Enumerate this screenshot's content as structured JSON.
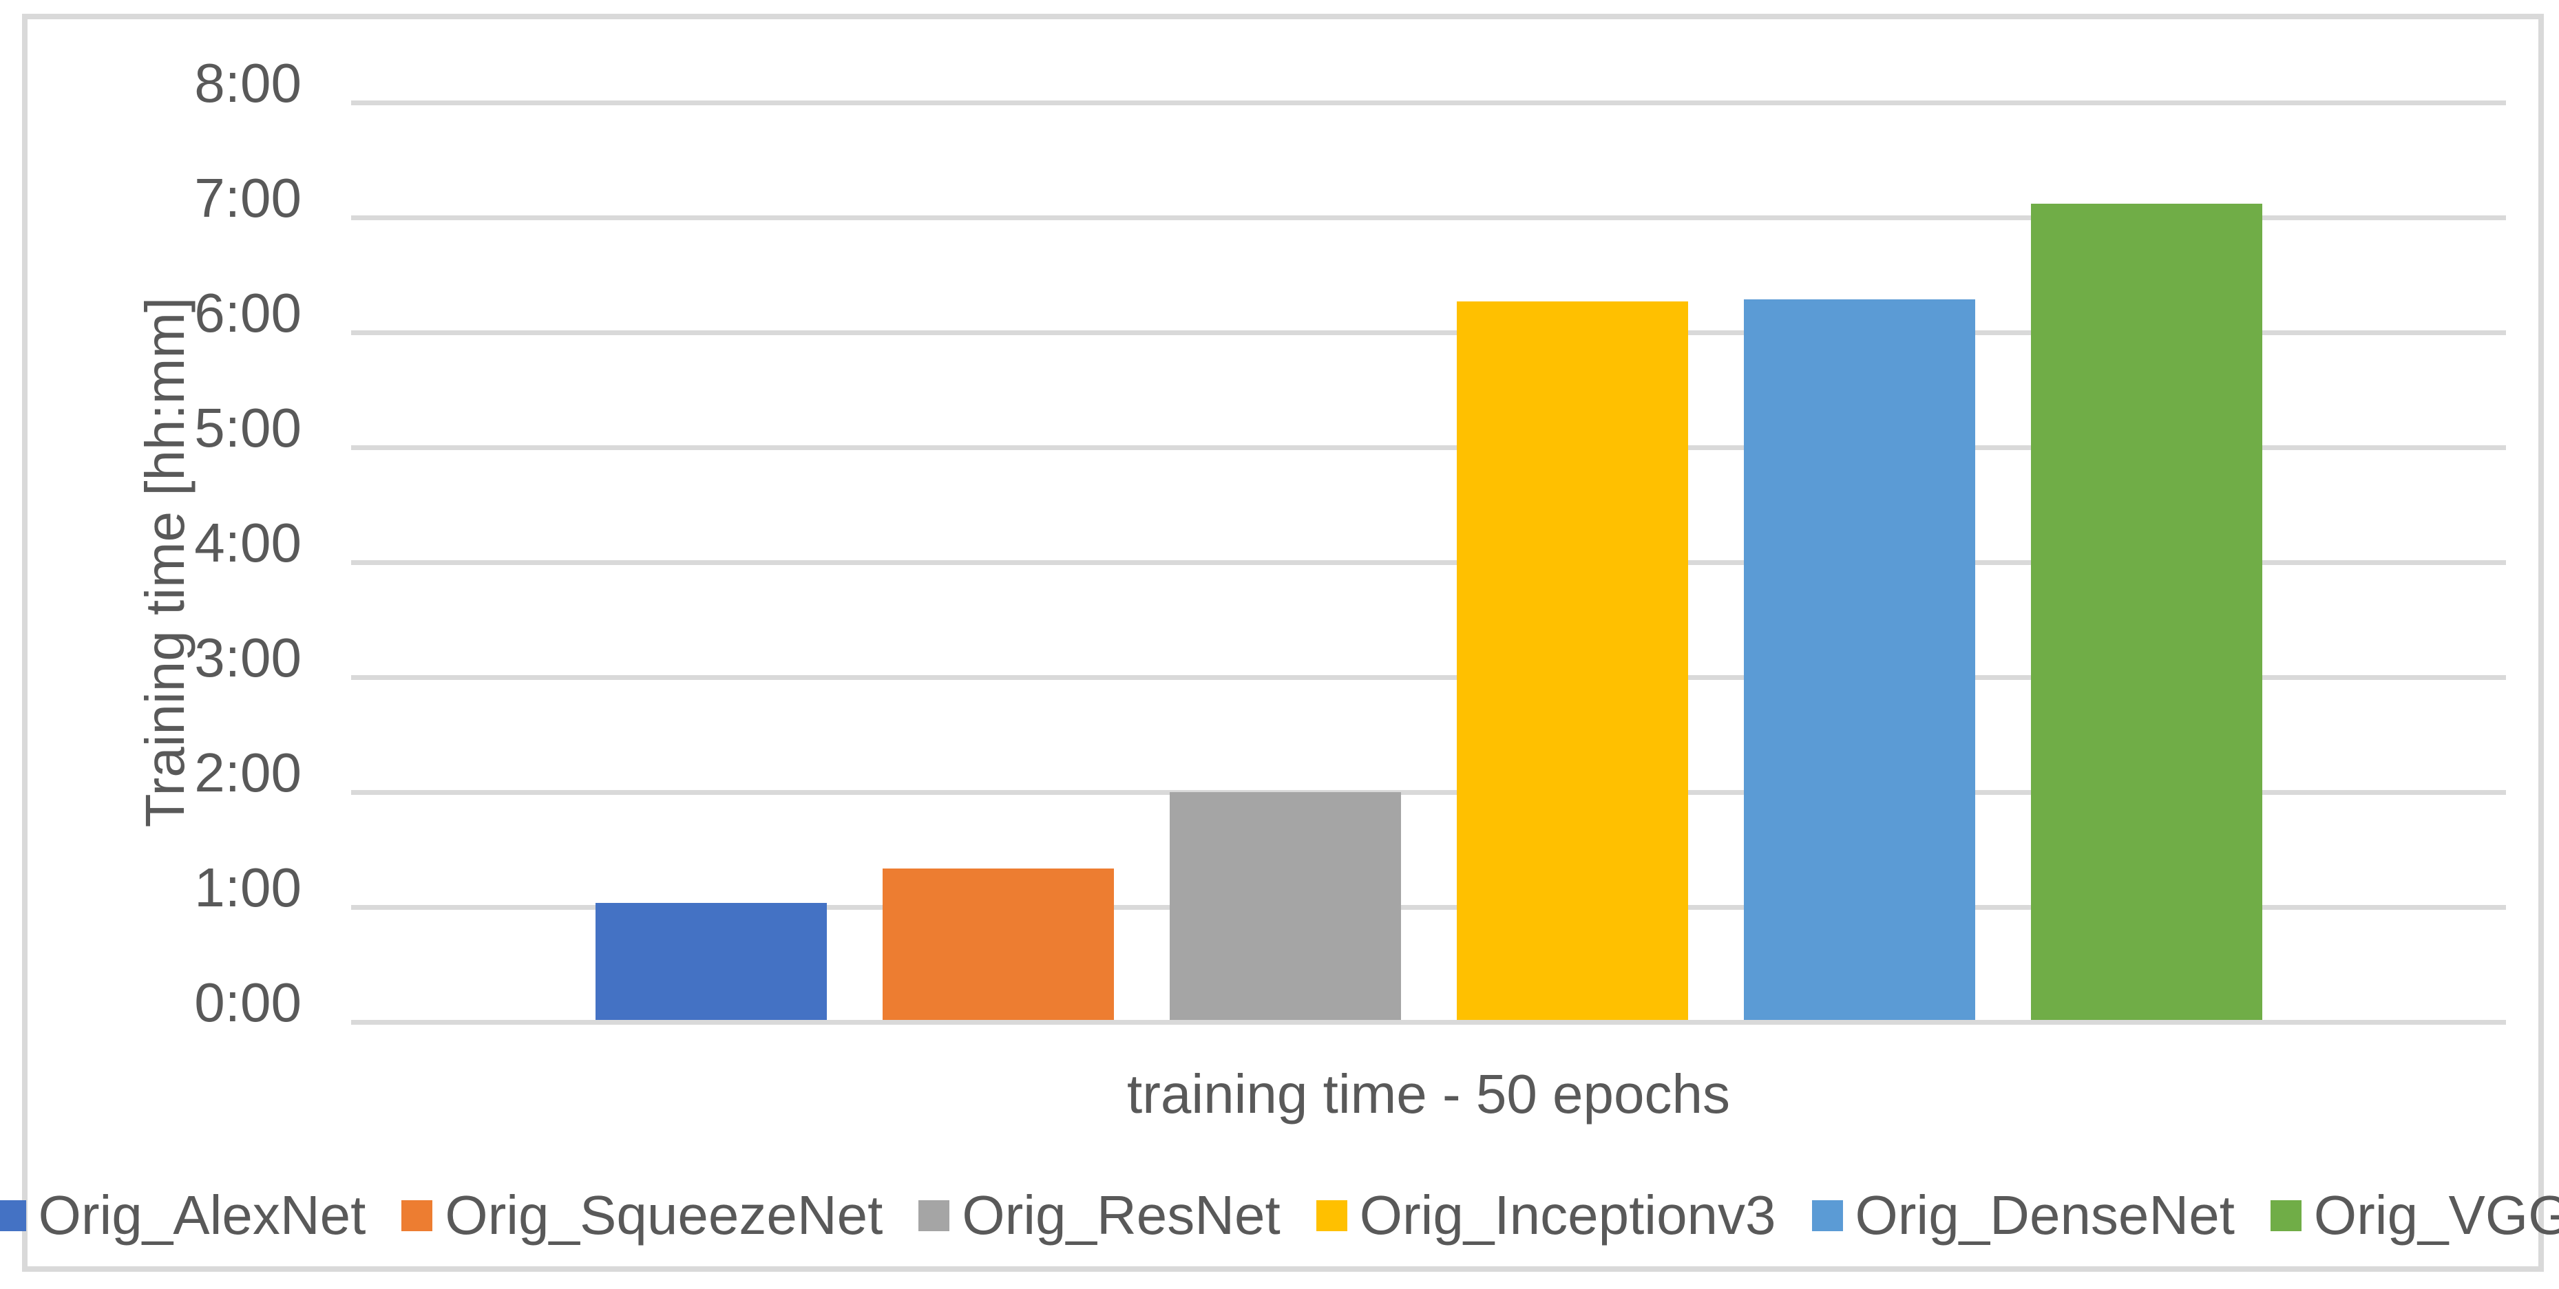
{
  "chart_data": {
    "type": "bar",
    "title": "",
    "categories": [
      "training time - 50 epochs"
    ],
    "series": [
      {
        "name": "Orig_AlexNet",
        "color": "#4472C4",
        "value_hhmm": "1:01",
        "value_minutes": 61
      },
      {
        "name": "Orig_SqueezeNet",
        "color": "#ED7D31",
        "value_hhmm": "1:19",
        "value_minutes": 79
      },
      {
        "name": "Orig_ResNet",
        "color": "#A5A5A5",
        "value_hhmm": "1:59",
        "value_minutes": 119
      },
      {
        "name": "Orig_Inceptionv3",
        "color": "#FFC000",
        "value_hhmm": "6:15",
        "value_minutes": 375
      },
      {
        "name": "Orig_DenseNet",
        "color": "#5B9BD5",
        "value_hhmm": "6:16",
        "value_minutes": 376
      },
      {
        "name": "Orig_VGG",
        "color": "#70AD47",
        "value_hhmm": "7:06",
        "value_minutes": 426
      }
    ],
    "xlabel": "training time - 50 epochs",
    "ylabel": "Training time [hh:mm]",
    "y_ticks": [
      "0:00",
      "1:00",
      "2:00",
      "3:00",
      "4:00",
      "5:00",
      "6:00",
      "7:00",
      "8:00"
    ],
    "ylim_minutes": [
      0,
      480
    ],
    "major_unit_minutes": 60,
    "grid": true,
    "legend_position": "bottom"
  },
  "colors": {
    "background": "#FFFFFF",
    "chart_border": "#D9D9D9",
    "gridline": "#D9D9D9",
    "axis_text": "#595959"
  }
}
